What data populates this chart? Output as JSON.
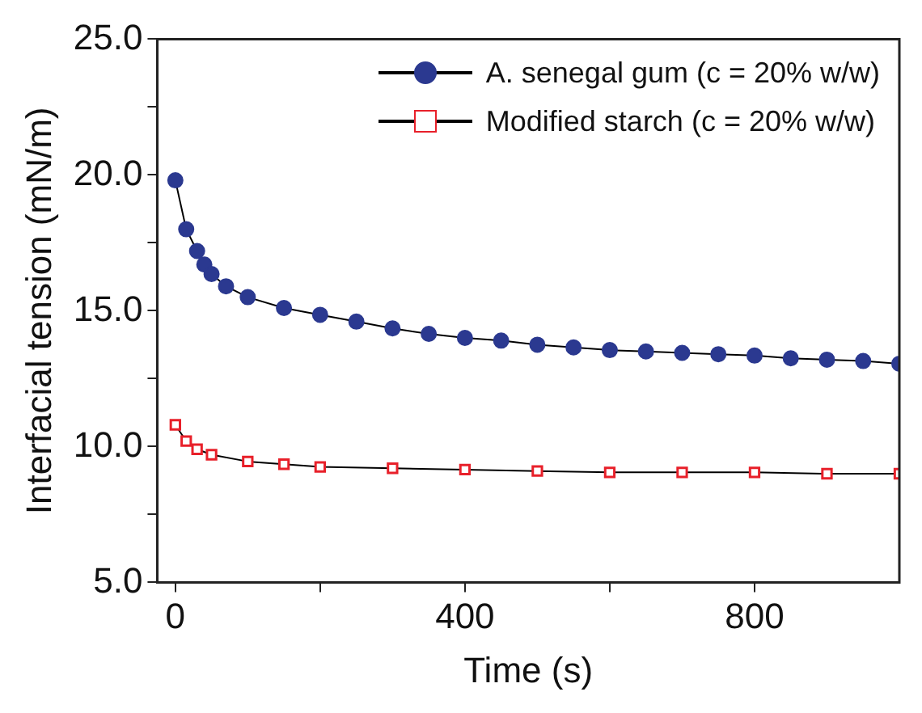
{
  "chart_data": {
    "type": "line",
    "xlabel": "Time (s)",
    "ylabel": "Interfacial tension (mN/m)",
    "xlim": [
      -25,
      1000
    ],
    "xticks": [
      0,
      {
        "value": 200,
        "label": null
      },
      400,
      {
        "value": 600,
        "label": null
      },
      800
    ],
    "ylim": [
      5,
      25
    ],
    "yticks": [
      {
        "value": 5,
        "label": "5.0"
      },
      {
        "value": 7.5,
        "label": null
      },
      {
        "value": 10,
        "label": "10.0"
      },
      {
        "value": 12.5,
        "label": null
      },
      {
        "value": 15,
        "label": "15.0"
      },
      {
        "value": 17.5,
        "label": null
      },
      {
        "value": 20,
        "label": "20.0"
      },
      {
        "value": 22.5,
        "label": null
      },
      {
        "value": 25,
        "label": "25.0"
      }
    ],
    "grid": false,
    "legend": "top right",
    "series": [
      {
        "name": "A. senegal gum (c = 20% w/w)",
        "color": "#2b3990",
        "marker": "circle",
        "x": [
          0,
          15,
          30,
          40,
          50,
          70,
          100,
          150,
          200,
          250,
          300,
          350,
          400,
          450,
          500,
          550,
          600,
          650,
          700,
          750,
          800,
          850,
          900,
          950,
          1000
        ],
        "values": [
          19.8,
          18.0,
          17.2,
          16.7,
          16.35,
          15.9,
          15.5,
          15.1,
          14.85,
          14.6,
          14.35,
          14.15,
          14.0,
          13.9,
          13.75,
          13.65,
          13.55,
          13.5,
          13.45,
          13.4,
          13.35,
          13.25,
          13.2,
          13.15,
          13.05
        ]
      },
      {
        "name": "Modified starch (c = 20% w/w)",
        "color": "#e8202a",
        "marker": "square",
        "x": [
          0,
          15,
          30,
          50,
          100,
          150,
          200,
          300,
          400,
          500,
          600,
          700,
          800,
          900,
          1000
        ],
        "values": [
          10.8,
          10.2,
          9.9,
          9.7,
          9.45,
          9.35,
          9.25,
          9.2,
          9.15,
          9.1,
          9.05,
          9.05,
          9.05,
          9.0,
          9.0
        ]
      }
    ]
  }
}
